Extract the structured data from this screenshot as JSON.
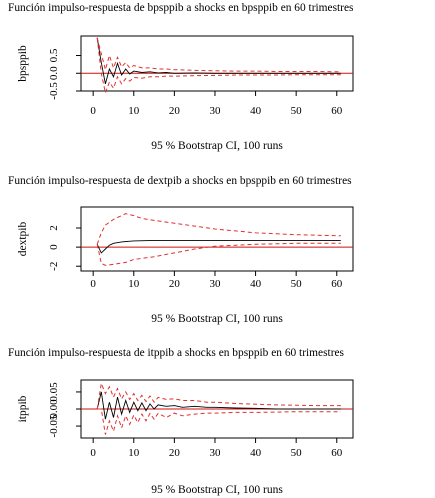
{
  "chart_data": [
    {
      "type": "line",
      "title": "Función impulso-respuesta de bpsppib a shocks en bpsppib en 60 trimestres",
      "ylabel": "bpsppib",
      "caption": "95 % Bootstrap CI, 100 runs",
      "xlim": [
        -3,
        64
      ],
      "ylim": [
        -0.5,
        1.05
      ],
      "xticks": [
        0,
        10,
        20,
        30,
        40,
        50,
        60
      ],
      "xtick_labels": [
        "0",
        "10",
        "20",
        "30",
        "40",
        "50",
        "60"
      ],
      "yticks": [
        -0.5,
        0,
        0.5
      ],
      "ytick_labels": [
        "-0.5",
        "0.0",
        "0.5"
      ],
      "reference_line": 0,
      "colors": {
        "response": "#000000",
        "ci": "#e03030",
        "zero": "#cc1111"
      },
      "series": [
        {
          "role": "response",
          "x": [
            1,
            2,
            3,
            4,
            5,
            6,
            7,
            8,
            9,
            10,
            12,
            14,
            16,
            18,
            20,
            25,
            30,
            35,
            40,
            45,
            50,
            55,
            60,
            61
          ],
          "y": [
            1.0,
            0.3,
            -0.3,
            0.12,
            -0.1,
            0.28,
            -0.05,
            0.12,
            -0.02,
            0.06,
            0.02,
            0.04,
            0.01,
            0.02,
            0.0,
            0.01,
            0.0,
            0.0,
            0.0,
            0.0,
            0.0,
            0.0,
            0.0,
            0.0
          ]
        },
        {
          "role": "ci_upper",
          "x": [
            1,
            2,
            3,
            4,
            5,
            6,
            7,
            8,
            9,
            10,
            12,
            14,
            16,
            18,
            20,
            25,
            30,
            35,
            40,
            45,
            50,
            55,
            60,
            61
          ],
          "y": [
            1.0,
            0.55,
            0.1,
            0.5,
            0.15,
            0.45,
            0.18,
            0.3,
            0.15,
            0.22,
            0.15,
            0.15,
            0.12,
            0.12,
            0.1,
            0.08,
            0.07,
            0.06,
            0.06,
            0.05,
            0.05,
            0.05,
            0.04,
            0.04
          ]
        },
        {
          "role": "ci_lower",
          "x": [
            1,
            2,
            3,
            4,
            5,
            6,
            7,
            8,
            9,
            10,
            12,
            14,
            16,
            18,
            20,
            25,
            30,
            35,
            40,
            45,
            50,
            55,
            60,
            61
          ],
          "y": [
            1.0,
            0.0,
            -0.55,
            -0.25,
            -0.42,
            -0.1,
            -0.3,
            -0.15,
            -0.22,
            -0.12,
            -0.14,
            -0.1,
            -0.1,
            -0.08,
            -0.08,
            -0.07,
            -0.06,
            -0.05,
            -0.05,
            -0.05,
            -0.04,
            -0.04,
            -0.04,
            -0.04
          ]
        }
      ]
    },
    {
      "type": "line",
      "title": "Función impulso-respuesta de dextpib a shocks en bpsppib en 60 trimestres",
      "ylabel": "dextpib",
      "caption": "95 % Bootstrap CI, 100 runs",
      "xlim": [
        -3,
        64
      ],
      "ylim": [
        -2.5,
        4.2
      ],
      "xticks": [
        0,
        10,
        20,
        30,
        40,
        50,
        60
      ],
      "xtick_labels": [
        "0",
        "10",
        "20",
        "30",
        "40",
        "50",
        "60"
      ],
      "yticks": [
        -2,
        0,
        2
      ],
      "ytick_labels": [
        "-2",
        "0",
        "2"
      ],
      "reference_line": 0,
      "colors": {
        "response": "#000000",
        "ci": "#e03030",
        "zero": "#cc1111"
      },
      "series": [
        {
          "role": "response",
          "x": [
            1,
            2,
            3,
            4,
            5,
            7,
            10,
            15,
            20,
            30,
            40,
            50,
            60,
            61
          ],
          "y": [
            0.3,
            -0.6,
            -0.2,
            0.2,
            0.4,
            0.55,
            0.65,
            0.7,
            0.7,
            0.7,
            0.7,
            0.7,
            0.7,
            0.7
          ]
        },
        {
          "role": "ci_upper",
          "x": [
            1,
            2,
            3,
            5,
            7,
            8,
            10,
            12,
            15,
            20,
            25,
            30,
            35,
            40,
            50,
            60,
            61
          ],
          "y": [
            0.3,
            1.5,
            2.3,
            2.9,
            3.3,
            3.5,
            3.3,
            3.0,
            2.8,
            2.5,
            2.2,
            1.9,
            1.7,
            1.5,
            1.3,
            1.2,
            1.2
          ]
        },
        {
          "role": "ci_lower",
          "x": [
            1,
            2,
            3,
            5,
            8,
            10,
            15,
            20,
            25,
            30,
            40,
            50,
            60,
            61
          ],
          "y": [
            0.3,
            -1.7,
            -1.9,
            -1.8,
            -1.6,
            -1.3,
            -1.0,
            -0.6,
            -0.2,
            0.1,
            0.3,
            0.4,
            0.4,
            0.4
          ]
        }
      ]
    },
    {
      "type": "line",
      "title": "Función impulso-respuesta de itppib a shocks en bpsppib en 60 trimestres",
      "ylabel": "itppib",
      "caption": "95 % Bootstrap CI, 100 runs",
      "xlim": [
        -3,
        64
      ],
      "ylim": [
        -0.085,
        0.085
      ],
      "xticks": [
        0,
        10,
        20,
        30,
        40,
        50,
        60
      ],
      "xtick_labels": [
        "0",
        "10",
        "20",
        "30",
        "40",
        "50",
        "60"
      ],
      "yticks": [
        -0.05,
        0,
        0.05
      ],
      "ytick_labels": [
        "-0.05",
        "0.00",
        "0.05"
      ],
      "reference_line": 0,
      "colors": {
        "response": "#000000",
        "ci": "#e03030",
        "zero": "#cc1111"
      },
      "series": [
        {
          "role": "response",
          "x": [
            1,
            2,
            3,
            4,
            5,
            6,
            7,
            8,
            9,
            10,
            11,
            12,
            13,
            14,
            15,
            16,
            18,
            20,
            22,
            25,
            28,
            30,
            35,
            40,
            45,
            50,
            55,
            60,
            61
          ],
          "y": [
            0.0,
            0.05,
            -0.03,
            0.02,
            -0.025,
            0.035,
            -0.015,
            0.025,
            -0.01,
            0.02,
            -0.005,
            0.018,
            -0.005,
            0.015,
            0.0,
            0.012,
            0.008,
            0.01,
            0.005,
            0.008,
            0.005,
            0.005,
            0.003,
            0.002,
            0.0,
            0.0,
            0.0,
            0.0,
            0.0
          ]
        },
        {
          "role": "ci_upper",
          "x": [
            1,
            2,
            3,
            4,
            5,
            6,
            7,
            8,
            9,
            10,
            11,
            12,
            13,
            14,
            15,
            16,
            18,
            20,
            22,
            25,
            28,
            30,
            35,
            40,
            45,
            50,
            55,
            60,
            61
          ],
          "y": [
            0.0,
            0.075,
            0.045,
            0.065,
            0.035,
            0.06,
            0.03,
            0.05,
            0.028,
            0.045,
            0.025,
            0.04,
            0.022,
            0.038,
            0.02,
            0.034,
            0.028,
            0.03,
            0.025,
            0.025,
            0.02,
            0.02,
            0.016,
            0.014,
            0.012,
            0.011,
            0.01,
            0.01,
            0.01
          ]
        },
        {
          "role": "ci_lower",
          "x": [
            1,
            2,
            3,
            4,
            5,
            6,
            7,
            8,
            9,
            10,
            11,
            12,
            13,
            14,
            15,
            16,
            18,
            20,
            22,
            25,
            28,
            30,
            35,
            40,
            45,
            50,
            55,
            60,
            61
          ],
          "y": [
            0.0,
            0.0,
            -0.075,
            -0.035,
            -0.065,
            -0.02,
            -0.055,
            -0.02,
            -0.045,
            -0.018,
            -0.04,
            -0.015,
            -0.035,
            -0.013,
            -0.03,
            -0.013,
            -0.025,
            -0.012,
            -0.02,
            -0.015,
            -0.012,
            -0.012,
            -0.01,
            -0.01,
            -0.009,
            -0.008,
            -0.008,
            -0.008,
            -0.008
          ]
        }
      ]
    }
  ]
}
